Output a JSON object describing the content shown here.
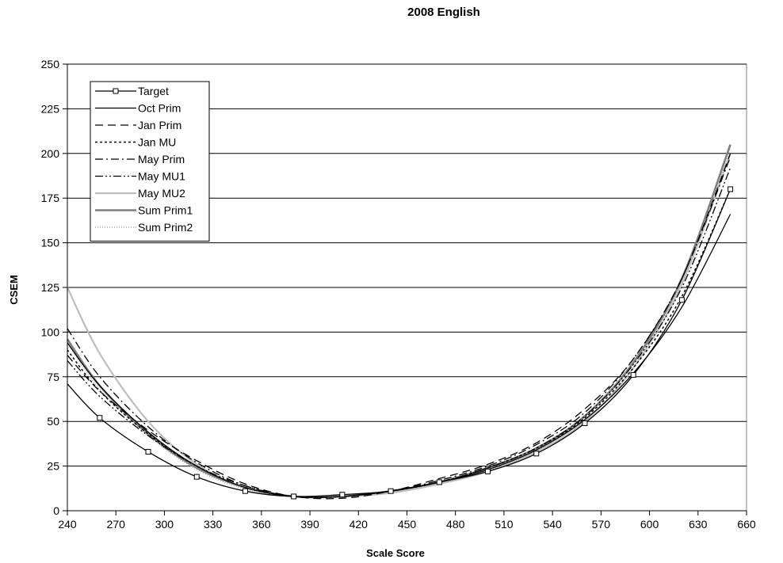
{
  "chart_data": {
    "type": "line",
    "title": "2008 English",
    "xlabel": "Scale Score",
    "ylabel": "CSEM",
    "xlim": [
      240,
      660
    ],
    "ylim": [
      0,
      250
    ],
    "xticks": [
      240,
      270,
      300,
      330,
      360,
      390,
      420,
      450,
      480,
      510,
      540,
      570,
      600,
      630,
      660
    ],
    "yticks": [
      0,
      25,
      50,
      75,
      100,
      125,
      150,
      175,
      200,
      225,
      250
    ],
    "grid": "horizontal",
    "legend_position": "top-left",
    "series": [
      {
        "name": "Target",
        "style": "solid-marker",
        "color": "#000000",
        "x_range": [
          240,
          650
        ],
        "markers_x": [
          260,
          290,
          320,
          350,
          380,
          410,
          440,
          470,
          500,
          530,
          560,
          590,
          620,
          650
        ],
        "x": [
          240,
          260,
          290,
          320,
          350,
          380,
          410,
          440,
          470,
          500,
          530,
          560,
          590,
          620,
          650
        ],
        "y": [
          71,
          52,
          33,
          19,
          11,
          8,
          9,
          11,
          16,
          22,
          32,
          49,
          76,
          118,
          180
        ]
      },
      {
        "name": "Oct Prim",
        "style": "solid",
        "color": "#000000",
        "x_range": [
          240,
          650
        ],
        "x": [
          240,
          260,
          290,
          320,
          350,
          380,
          410,
          440,
          470,
          500,
          530,
          560,
          590,
          620,
          650
        ],
        "y": [
          94,
          70,
          44,
          25,
          13,
          8,
          8,
          11,
          16,
          23,
          34,
          51,
          77,
          114,
          166
        ]
      },
      {
        "name": "Jan Prim",
        "style": "dash",
        "color": "#000000",
        "x_range": [
          240,
          650
        ],
        "x": [
          240,
          260,
          290,
          320,
          350,
          380,
          410,
          440,
          470,
          500,
          530,
          560,
          590,
          620,
          650
        ],
        "y": [
          87,
          67,
          45,
          28,
          15,
          8,
          7,
          11,
          18,
          26,
          38,
          57,
          85,
          130,
          200
        ]
      },
      {
        "name": "Jan MU",
        "style": "dot",
        "color": "#000000",
        "x_range": [
          240,
          650
        ],
        "x": [
          240,
          260,
          290,
          320,
          350,
          380,
          410,
          440,
          470,
          500,
          530,
          560,
          590,
          620,
          650
        ],
        "y": [
          90,
          67,
          43,
          25,
          13,
          8,
          8,
          11,
          16,
          24,
          35,
          52,
          80,
          120,
          180
        ]
      },
      {
        "name": "May Prim",
        "style": "dashdot",
        "color": "#000000",
        "x_range": [
          240,
          650
        ],
        "x": [
          240,
          260,
          290,
          320,
          350,
          380,
          410,
          440,
          470,
          500,
          530,
          560,
          590,
          620,
          650
        ],
        "y": [
          102,
          75,
          47,
          27,
          14,
          8,
          8,
          11,
          17,
          25,
          37,
          55,
          85,
          130,
          198
        ]
      },
      {
        "name": "May MU1",
        "style": "dashdotdot",
        "color": "#000000",
        "x_range": [
          240,
          650
        ],
        "x": [
          240,
          260,
          290,
          320,
          350,
          380,
          410,
          440,
          470,
          500,
          530,
          560,
          590,
          620,
          650
        ],
        "y": [
          84,
          64,
          42,
          25,
          14,
          8,
          8,
          11,
          16,
          24,
          35,
          53,
          82,
          125,
          192
        ]
      },
      {
        "name": "May MU2",
        "style": "solid-light",
        "color": "#bdbdbd",
        "x_range": [
          240,
          650
        ],
        "x": [
          240,
          260,
          290,
          320,
          350,
          380,
          410,
          440,
          470,
          500,
          530,
          560,
          590,
          620,
          650
        ],
        "y": [
          125,
          88,
          50,
          26,
          13,
          8,
          8,
          10,
          15,
          22,
          33,
          50,
          80,
          127,
          200
        ]
      },
      {
        "name": "Sum Prim1",
        "style": "solid-thick",
        "color": "#808080",
        "x_range": [
          240,
          650
        ],
        "x": [
          240,
          260,
          290,
          320,
          350,
          380,
          410,
          440,
          470,
          500,
          530,
          560,
          590,
          620,
          650
        ],
        "y": [
          96,
          70,
          43,
          24,
          13,
          8,
          8,
          11,
          16,
          24,
          35,
          53,
          83,
          130,
          205
        ]
      },
      {
        "name": "Sum Prim2",
        "style": "dotted-grey",
        "color": "#a6a6a6",
        "x_range": [
          240,
          650
        ],
        "x": [
          240,
          260,
          290,
          320,
          350,
          380,
          410,
          440,
          470,
          500,
          530,
          560,
          590,
          620,
          650
        ],
        "y": [
          94,
          68,
          42,
          23,
          12,
          8,
          8,
          11,
          15,
          23,
          34,
          52,
          82,
          128,
          203
        ]
      }
    ]
  }
}
